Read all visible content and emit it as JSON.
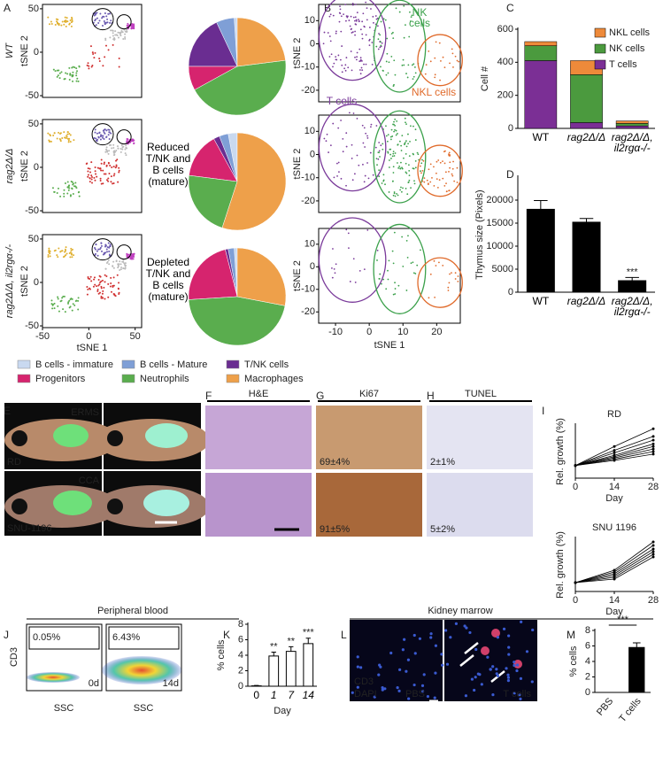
{
  "panel_labels": [
    "A",
    "B",
    "C",
    "D",
    "E",
    "F",
    "G",
    "H",
    "I",
    "J",
    "K",
    "L",
    "M"
  ],
  "tsne": {
    "x_label": "tSNE 1",
    "y_label": "tSNE 2",
    "row_labels": [
      "WT",
      "rag2Δ/Δ",
      "rag2Δ/Δ, il2rgα-/-"
    ],
    "xlim": [
      -50,
      57
    ],
    "xticks": [
      -50,
      0,
      50
    ],
    "ylim": [
      -52,
      55
    ],
    "yticks": [
      50,
      0,
      -50
    ]
  },
  "pies": {
    "annotations": [
      "Reduced T/NK and B cells (mature)",
      "Depleted T/NK and B cells (mature)"
    ],
    "legend": [
      {
        "name": "B cells - immature",
        "color": "#c9d9f0"
      },
      {
        "name": "B cells - Mature",
        "color": "#7f9fd6"
      },
      {
        "name": "T/NK cells",
        "color": "#6a2d91"
      },
      {
        "name": "Progenitors",
        "color": "#d6246e"
      },
      {
        "name": "Neutrophils",
        "color": "#5aad4e"
      },
      {
        "name": "Macrophages",
        "color": "#eea04a"
      }
    ],
    "values": [
      [
        1,
        6,
        18,
        8,
        44,
        23
      ],
      [
        3,
        3,
        2,
        15,
        22,
        55
      ],
      [
        1,
        2,
        1,
        22,
        46,
        28
      ]
    ]
  },
  "subset_tsne": {
    "x_label": "tSNE 1",
    "y_label": "tSNE 2",
    "xlim": [
      -15,
      27
    ],
    "xticks": [
      -10,
      0,
      10,
      20
    ],
    "ylim": [
      -25,
      17
    ],
    "yticks": [
      10,
      0,
      -10,
      -20
    ],
    "gates": [
      {
        "name": "T cells",
        "color": "#7a3a9a"
      },
      {
        "name": "NK cells",
        "color": "#3aa04a"
      },
      {
        "name": "NKL cells",
        "color": "#e06a2a"
      }
    ]
  },
  "cell_counts": {
    "type": "stacked_bar",
    "y_label": "Cell #",
    "categories": [
      "WT",
      "rag2Δ/Δ",
      "rag2Δ/Δ, il2rgα-/-"
    ],
    "ylim": [
      0,
      600
    ],
    "yticks": [
      0,
      200,
      400,
      600
    ],
    "series": [
      {
        "name": "T cells",
        "color": "#7b2f95",
        "values": [
          410,
          35,
          15
        ]
      },
      {
        "name": "NK cells",
        "color": "#4b9a3e",
        "values": [
          90,
          290,
          15
        ]
      },
      {
        "name": "NKL cells",
        "color": "#ee8a3a",
        "values": [
          25,
          85,
          15
        ]
      }
    ]
  },
  "thymus": {
    "type": "bar",
    "y_label": "Thymus size (Pixels)",
    "categories": [
      "WT",
      "rag2Δ/Δ",
      "rag2Δ/Δ, il2rgα-/-"
    ],
    "values": [
      18000,
      15200,
      2500
    ],
    "errors": [
      1900,
      800,
      700
    ],
    "significance": [
      null,
      null,
      "***"
    ],
    "color": "#000000",
    "ylim": [
      0,
      25000
    ],
    "yticks": [
      0,
      5000,
      10000,
      15000,
      20000
    ]
  },
  "histology": {
    "columns": [
      "H&E",
      "Ki67",
      "TUNEL"
    ],
    "tumor_labels": [
      "ERMS",
      "CCA"
    ],
    "cell_lines": [
      "RD",
      "SNU-1196"
    ],
    "ki67": [
      "69±4%",
      "91±5%"
    ],
    "tunel": [
      "2±1%",
      "5±2%"
    ]
  },
  "growth": [
    {
      "type": "line",
      "title": "RD",
      "x_label": "Day",
      "y_label": "Rel. growth (%)",
      "x": [
        0,
        14,
        28
      ],
      "xlim": [
        0,
        28
      ],
      "xticks": [
        0,
        14,
        28
      ],
      "ylim": [
        50,
        260
      ],
      "color": "#000000",
      "series": [
        {
          "values": [
            100,
            175,
            245
          ]
        },
        {
          "values": [
            100,
            160,
            215
          ]
        },
        {
          "values": [
            100,
            150,
            200
          ]
        },
        {
          "values": [
            100,
            140,
            185
          ]
        },
        {
          "values": [
            100,
            135,
            175
          ]
        },
        {
          "values": [
            100,
            130,
            165
          ]
        },
        {
          "values": [
            100,
            125,
            155
          ]
        },
        {
          "values": [
            100,
            120,
            145
          ]
        }
      ]
    },
    {
      "type": "line",
      "title": "SNU 1196",
      "x_label": "Day",
      "y_label": "Rel. growth (%)",
      "x": [
        0,
        14,
        28
      ],
      "xlim": [
        0,
        28
      ],
      "xticks": [
        0,
        14,
        28
      ],
      "ylim": [
        50,
        350
      ],
      "color": "#000000",
      "series": [
        {
          "values": [
            100,
            170,
            330
          ]
        },
        {
          "values": [
            100,
            160,
            310
          ]
        },
        {
          "values": [
            100,
            150,
            290
          ]
        },
        {
          "values": [
            100,
            140,
            275
          ]
        },
        {
          "values": [
            100,
            130,
            260
          ]
        },
        {
          "values": [
            100,
            120,
            245
          ]
        }
      ]
    }
  ],
  "flow": {
    "title": "Peripheral blood",
    "y_label": "CD3",
    "x_label": "SSC",
    "gates": [
      "0.05%",
      "6.43%"
    ],
    "days": [
      "0d",
      "14d"
    ]
  },
  "blood_pct": {
    "type": "bar",
    "y_label": "% cells",
    "x_label": "Day",
    "categories": [
      "0",
      "1",
      "7",
      "14"
    ],
    "values": [
      0.05,
      3.9,
      4.5,
      5.5
    ],
    "errors": [
      0.05,
      0.5,
      0.6,
      0.7
    ],
    "significance": [
      null,
      "**",
      "**",
      "***"
    ],
    "color": "#ffffff",
    "ylim": [
      0,
      8
    ],
    "yticks": [
      0,
      2,
      4,
      6,
      8
    ]
  },
  "marrow": {
    "title": "Kidney marrow",
    "stains": [
      {
        "name": "CD3",
        "color": "#e0304a"
      },
      {
        "name": "DAPI",
        "color": "#3a8ae0"
      }
    ],
    "conditions": [
      "PBS",
      "T cells"
    ]
  },
  "marrow_pct": {
    "type": "bar",
    "y_label": "% cells",
    "categories": [
      "PBS",
      "T cells"
    ],
    "values": [
      0,
      5.8
    ],
    "errors": [
      0,
      0.6
    ],
    "comparison_label": "***",
    "color": "#000000",
    "ylim": [
      0,
      8
    ],
    "yticks": [
      0,
      2,
      4,
      6,
      8
    ]
  }
}
